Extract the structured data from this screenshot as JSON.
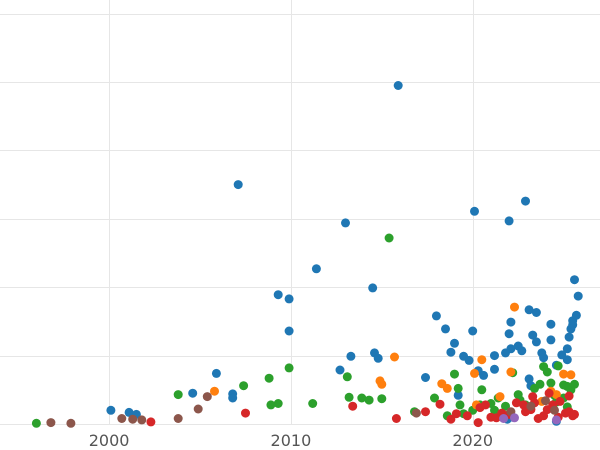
{
  "chart_data": {
    "type": "scatter",
    "title": "",
    "xlabel": "",
    "ylabel": "",
    "xlim": [
      1994,
      2027
    ],
    "ylim": [
      0,
      6.2
    ],
    "x_ticks": [
      2000,
      2010,
      2020
    ],
    "y_gridlines": [
      0,
      1,
      2,
      3,
      4,
      5,
      6
    ],
    "y_tick_labels_visible": false,
    "grid": true,
    "legend": "none",
    "series": [
      {
        "color": "#1f77b4",
        "points": [
          [
            2000.1,
            0.2
          ],
          [
            2001.1,
            0.17
          ],
          [
            2001.5,
            0.14
          ],
          [
            2004.6,
            0.45
          ],
          [
            2005.9,
            0.74
          ],
          [
            2006.8,
            0.44
          ],
          [
            2006.8,
            0.38
          ],
          [
            2007.1,
            3.5
          ],
          [
            2009.3,
            1.89
          ],
          [
            2009.9,
            1.83
          ],
          [
            2009.9,
            1.36
          ],
          [
            2011.4,
            2.27
          ],
          [
            2012.7,
            0.79
          ],
          [
            2013.0,
            2.94
          ],
          [
            2013.3,
            0.99
          ],
          [
            2014.5,
            1.99
          ],
          [
            2014.6,
            1.04
          ],
          [
            2014.8,
            0.96
          ],
          [
            2015.9,
            4.95
          ],
          [
            2017.4,
            0.68
          ],
          [
            2018.0,
            1.58
          ],
          [
            2018.5,
            1.39
          ],
          [
            2018.8,
            1.05
          ],
          [
            2019.0,
            1.18
          ],
          [
            2019.2,
            0.42
          ],
          [
            2019.5,
            0.99
          ],
          [
            2019.8,
            0.93
          ],
          [
            2020.0,
            1.36
          ],
          [
            2020.1,
            3.11
          ],
          [
            2020.3,
            0.78
          ],
          [
            2020.6,
            0.71
          ],
          [
            2021.2,
            1.0
          ],
          [
            2021.2,
            0.8
          ],
          [
            2021.8,
            1.04
          ],
          [
            2022.1,
            1.1
          ],
          [
            2022.0,
            1.32
          ],
          [
            2022.1,
            1.49
          ],
          [
            2022.0,
            2.97
          ],
          [
            2022.5,
            1.14
          ],
          [
            2022.7,
            1.07
          ],
          [
            2022.9,
            3.26
          ],
          [
            2023.1,
            1.67
          ],
          [
            2023.1,
            0.66
          ],
          [
            2023.2,
            0.56
          ],
          [
            2023.3,
            1.3
          ],
          [
            2023.5,
            1.63
          ],
          [
            2023.5,
            1.2
          ],
          [
            2023.8,
            1.04
          ],
          [
            2023.9,
            0.97
          ],
          [
            2024.3,
            1.46
          ],
          [
            2024.3,
            1.23
          ],
          [
            2024.6,
            0.86
          ],
          [
            2024.9,
            1.01
          ],
          [
            2025.2,
            1.1
          ],
          [
            2025.2,
            0.94
          ],
          [
            2025.3,
            1.27
          ],
          [
            2025.4,
            1.39
          ],
          [
            2025.5,
            1.45
          ],
          [
            2025.5,
            1.51
          ],
          [
            2025.6,
            2.11
          ],
          [
            2025.7,
            1.59
          ],
          [
            2025.8,
            1.87
          ],
          [
            2021.9,
            0.07
          ],
          [
            2022.2,
            0.1
          ],
          [
            2024.6,
            0.04
          ]
        ]
      },
      {
        "color": "#2ca02c",
        "points": [
          [
            1996.0,
            0.01
          ],
          [
            2003.8,
            0.43
          ],
          [
            2007.4,
            0.56
          ],
          [
            2008.8,
            0.67
          ],
          [
            2008.9,
            0.28
          ],
          [
            2009.3,
            0.3
          ],
          [
            2009.9,
            0.82
          ],
          [
            2011.2,
            0.3
          ],
          [
            2013.1,
            0.69
          ],
          [
            2013.2,
            0.39
          ],
          [
            2013.9,
            0.38
          ],
          [
            2014.3,
            0.35
          ],
          [
            2015.0,
            0.37
          ],
          [
            2015.4,
            2.72
          ],
          [
            2016.8,
            0.18
          ],
          [
            2017.9,
            0.38
          ],
          [
            2018.6,
            0.12
          ],
          [
            2019.0,
            0.73
          ],
          [
            2019.2,
            0.52
          ],
          [
            2019.3,
            0.28
          ],
          [
            2019.5,
            0.15
          ],
          [
            2020.0,
            0.2
          ],
          [
            2020.4,
            0.28
          ],
          [
            2020.5,
            0.5
          ],
          [
            2021.0,
            0.3
          ],
          [
            2021.2,
            0.2
          ],
          [
            2021.4,
            0.38
          ],
          [
            2021.8,
            0.26
          ],
          [
            2022.2,
            0.75
          ],
          [
            2022.5,
            0.43
          ],
          [
            2022.6,
            0.35
          ],
          [
            2022.9,
            0.28
          ],
          [
            2023.1,
            0.23
          ],
          [
            2023.4,
            0.52
          ],
          [
            2023.7,
            0.58
          ],
          [
            2023.9,
            0.84
          ],
          [
            2024.1,
            0.76
          ],
          [
            2024.3,
            0.6
          ],
          [
            2024.5,
            0.42
          ],
          [
            2024.7,
            0.85
          ],
          [
            2025.0,
            0.57
          ],
          [
            2025.2,
            0.55
          ],
          [
            2025.4,
            0.5
          ],
          [
            2025.6,
            0.58
          ],
          [
            2025.2,
            0.25
          ],
          [
            2025.0,
            0.38
          ],
          [
            2024.6,
            0.32
          ]
        ]
      },
      {
        "color": "#ff7f0e",
        "points": [
          [
            2005.8,
            0.48
          ],
          [
            2014.9,
            0.63
          ],
          [
            2015.0,
            0.58
          ],
          [
            2015.7,
            0.98
          ],
          [
            2018.3,
            0.59
          ],
          [
            2018.6,
            0.52
          ],
          [
            2020.1,
            0.74
          ],
          [
            2020.5,
            0.94
          ],
          [
            2022.1,
            0.76
          ],
          [
            2022.3,
            1.71
          ],
          [
            2025.0,
            0.73
          ],
          [
            2025.4,
            0.72
          ],
          [
            2024.3,
            0.48
          ],
          [
            2024.6,
            0.43
          ],
          [
            2021.5,
            0.4
          ],
          [
            2023.8,
            0.33
          ],
          [
            2020.2,
            0.28
          ]
        ]
      },
      {
        "color": "#d62728",
        "points": [
          [
            2002.3,
            0.03
          ],
          [
            2007.5,
            0.16
          ],
          [
            2013.4,
            0.26
          ],
          [
            2015.8,
            0.08
          ],
          [
            2017.4,
            0.18
          ],
          [
            2018.2,
            0.29
          ],
          [
            2018.8,
            0.07
          ],
          [
            2019.1,
            0.15
          ],
          [
            2019.7,
            0.12
          ],
          [
            2020.3,
            0.02
          ],
          [
            2020.4,
            0.24
          ],
          [
            2020.7,
            0.28
          ],
          [
            2021.0,
            0.1
          ],
          [
            2021.3,
            0.09
          ],
          [
            2021.6,
            0.16
          ],
          [
            2022.0,
            0.14
          ],
          [
            2022.4,
            0.31
          ],
          [
            2022.8,
            0.28
          ],
          [
            2023.2,
            0.21
          ],
          [
            2023.4,
            0.31
          ],
          [
            2023.6,
            0.08
          ],
          [
            2023.9,
            0.12
          ],
          [
            2024.1,
            0.21
          ],
          [
            2024.4,
            0.28
          ],
          [
            2024.8,
            0.33
          ],
          [
            2025.1,
            0.16
          ],
          [
            2025.3,
            0.18
          ],
          [
            2025.5,
            0.12
          ],
          [
            2025.3,
            0.41
          ],
          [
            2024.2,
            0.45
          ],
          [
            2023.3,
            0.4
          ],
          [
            2022.9,
            0.18
          ],
          [
            2024.7,
            0.1
          ],
          [
            2025.6,
            0.14
          ]
        ]
      },
      {
        "color": "#8c564b",
        "points": [
          [
            1996.8,
            0.02
          ],
          [
            1997.9,
            0.01
          ],
          [
            2000.7,
            0.08
          ],
          [
            2001.3,
            0.07
          ],
          [
            2001.8,
            0.06
          ],
          [
            2003.8,
            0.08
          ],
          [
            2004.9,
            0.22
          ],
          [
            2005.4,
            0.4
          ],
          [
            2016.9,
            0.16
          ],
          [
            2022.1,
            0.18
          ],
          [
            2023.2,
            0.26
          ],
          [
            2024.0,
            0.34
          ],
          [
            2024.5,
            0.2
          ]
        ]
      },
      {
        "color": "#9467bd",
        "points": [
          [
            2021.7,
            0.08
          ],
          [
            2022.3,
            0.09
          ],
          [
            2024.6,
            0.06
          ]
        ]
      }
    ]
  }
}
